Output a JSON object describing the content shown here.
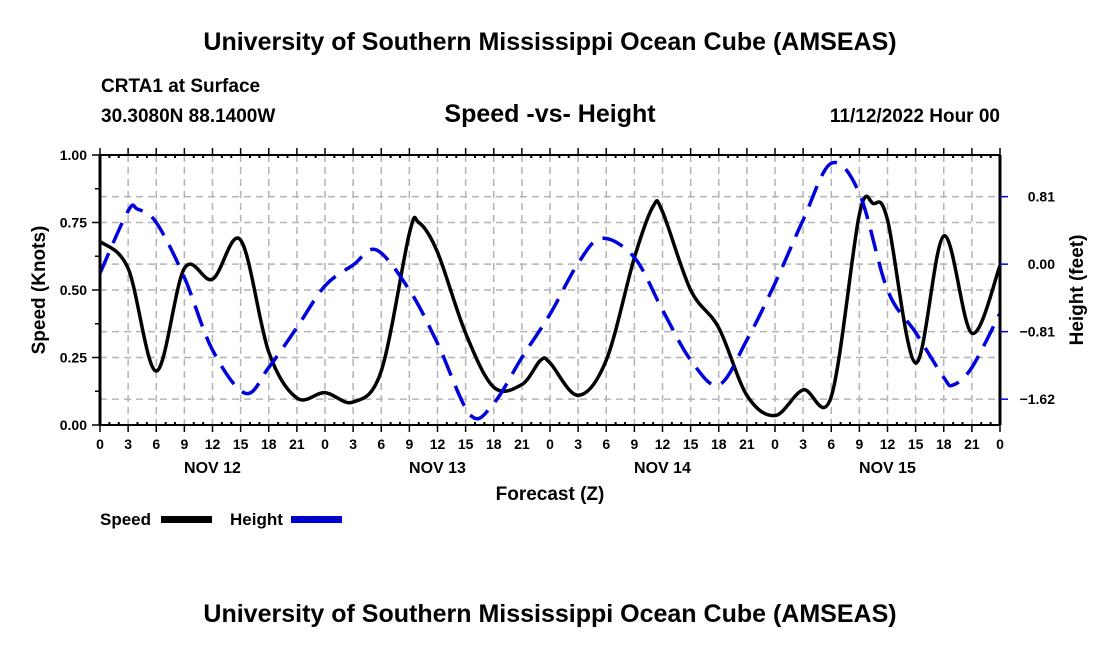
{
  "header": {
    "title": "University of Southern Mississippi Ocean Cube (AMSEAS)",
    "station": "CRTA1 at Surface",
    "coordinates": "30.3080N  88.1400W",
    "subtitle": "Speed -vs- Height",
    "datetime": "11/12/2022 Hour 00"
  },
  "footer": {
    "title": "University of Southern Mississippi Ocean Cube (AMSEAS)"
  },
  "colors": {
    "speed": "#000000",
    "height": "#0000dd",
    "grid": "#b4b4b4"
  },
  "chart_data": {
    "type": "line",
    "title": "Speed -vs- Height",
    "xlabel": "Forecast (Z)",
    "ylabel": "Speed (Knots)",
    "y2label": "Height (feet)",
    "grid": true,
    "legend_position": "bottom-left",
    "x_unit": "forecast hour",
    "xlim": [
      0,
      96
    ],
    "ylim": [
      0,
      1
    ],
    "y2lim": [
      -1.93,
      1.31
    ],
    "x_ticks": [
      0,
      3,
      6,
      9,
      12,
      15,
      18,
      21,
      24,
      27,
      30,
      33,
      36,
      39,
      42,
      45,
      48,
      51,
      54,
      57,
      60,
      63,
      66,
      69,
      72,
      75,
      78,
      81,
      84,
      87,
      90,
      93,
      96
    ],
    "x_tick_labels": [
      "0",
      "3",
      "6",
      "9",
      "12",
      "15",
      "18",
      "21",
      "0",
      "3",
      "6",
      "9",
      "12",
      "15",
      "18",
      "21",
      "0",
      "3",
      "6",
      "9",
      "12",
      "15",
      "18",
      "21",
      "0",
      "3",
      "6",
      "9",
      "12",
      "15",
      "18",
      "21",
      "0"
    ],
    "date_labels": [
      {
        "hour": 12,
        "label": "NOV 12"
      },
      {
        "hour": 36,
        "label": "NOV 13"
      },
      {
        "hour": 60,
        "label": "NOV 14"
      },
      {
        "hour": 84,
        "label": "NOV 15"
      }
    ],
    "y_ticks": [
      0,
      0.25,
      0.5,
      0.75,
      1
    ],
    "y_tick_labels": [
      "0.00",
      "0.25",
      "0.50",
      "0.75",
      "1.00"
    ],
    "y2_ticks": [
      0.81,
      0,
      -0.81,
      -1.62
    ],
    "y2_tick_labels": [
      "0.81",
      "0.00",
      "−0.81",
      "−1.62"
    ],
    "series": [
      {
        "name": "Speed",
        "axis": "left",
        "style": "solid",
        "x": [
          0,
          3,
          6,
          9,
          12,
          15,
          18,
          21,
          24,
          27,
          30,
          33,
          34,
          36,
          39,
          42,
          45,
          47,
          48,
          51,
          54,
          57,
          59,
          60,
          63,
          66,
          69,
          72,
          75,
          78,
          81,
          82.5,
          84,
          87,
          90,
          93,
          96
        ],
        "values": [
          0.68,
          0.58,
          0.2,
          0.58,
          0.54,
          0.685,
          0.27,
          0.1,
          0.12,
          0.085,
          0.2,
          0.71,
          0.75,
          0.64,
          0.34,
          0.14,
          0.15,
          0.24,
          0.23,
          0.11,
          0.24,
          0.62,
          0.81,
          0.79,
          0.5,
          0.36,
          0.11,
          0.035,
          0.13,
          0.105,
          0.78,
          0.82,
          0.76,
          0.23,
          0.7,
          0.34,
          0.59
        ]
      },
      {
        "name": "Height",
        "axis": "right",
        "style": "dashed",
        "x": [
          0,
          3,
          4,
          6,
          9,
          12,
          15.5,
          18,
          21,
          24,
          27,
          29.5,
          33,
          36,
          39.5,
          42,
          45,
          48,
          51,
          53.5,
          57,
          60,
          63,
          66,
          69,
          72,
          75,
          78,
          81,
          84,
          87,
          90,
          91,
          93,
          96
        ],
        "values": [
          -0.11,
          0.64,
          0.66,
          0.5,
          -0.16,
          -1.03,
          -1.55,
          -1.24,
          -0.76,
          -0.26,
          -0.01,
          0.17,
          -0.31,
          -0.95,
          -1.81,
          -1.67,
          -1.12,
          -0.6,
          0.01,
          0.31,
          0.08,
          -0.55,
          -1.15,
          -1.45,
          -0.91,
          -0.23,
          0.53,
          1.21,
          0.85,
          -0.31,
          -0.82,
          -1.36,
          -1.45,
          -1.24,
          -0.59
        ]
      }
    ]
  },
  "legend": [
    {
      "label": "Speed",
      "style": "solid"
    },
    {
      "label": "Height",
      "style": "dashed"
    }
  ]
}
